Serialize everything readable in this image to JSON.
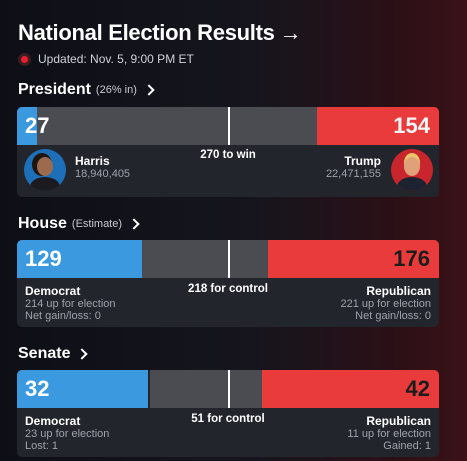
{
  "header": {
    "title": "National Election Results",
    "arrow": "→",
    "updated": "Updated: Nov. 5, 9:00 PM ET"
  },
  "president": {
    "label": "President",
    "sub": "(26% in)",
    "dem_ev": "27",
    "rep_ev": "154",
    "threshold": "270 to win",
    "dem": {
      "name": "Harris",
      "votes": "18,940,405"
    },
    "rep": {
      "name": "Trump",
      "votes": "22,471,155"
    }
  },
  "house": {
    "label": "House",
    "sub": "(Estimate)",
    "dem_seats": "129",
    "rep_seats": "176",
    "threshold": "218 for control",
    "dem": {
      "party": "Democrat",
      "up": "214 up for election",
      "change": "Net gain/loss: 0"
    },
    "rep": {
      "party": "Republican",
      "up": "221 up for election",
      "change": "Net gain/loss: 0"
    }
  },
  "senate": {
    "label": "Senate",
    "dem_seats": "32",
    "rep_seats": "42",
    "threshold": "51 for control",
    "dem": {
      "party": "Democrat",
      "up": "23 up for election",
      "change": "Lost: 1"
    },
    "rep": {
      "party": "Republican",
      "up": "11 up for election",
      "change": "Gained: 1"
    }
  },
  "colors": {
    "dem": "#3b9adf",
    "rep": "#e93b3b",
    "undecided": "#4a4c52"
  }
}
